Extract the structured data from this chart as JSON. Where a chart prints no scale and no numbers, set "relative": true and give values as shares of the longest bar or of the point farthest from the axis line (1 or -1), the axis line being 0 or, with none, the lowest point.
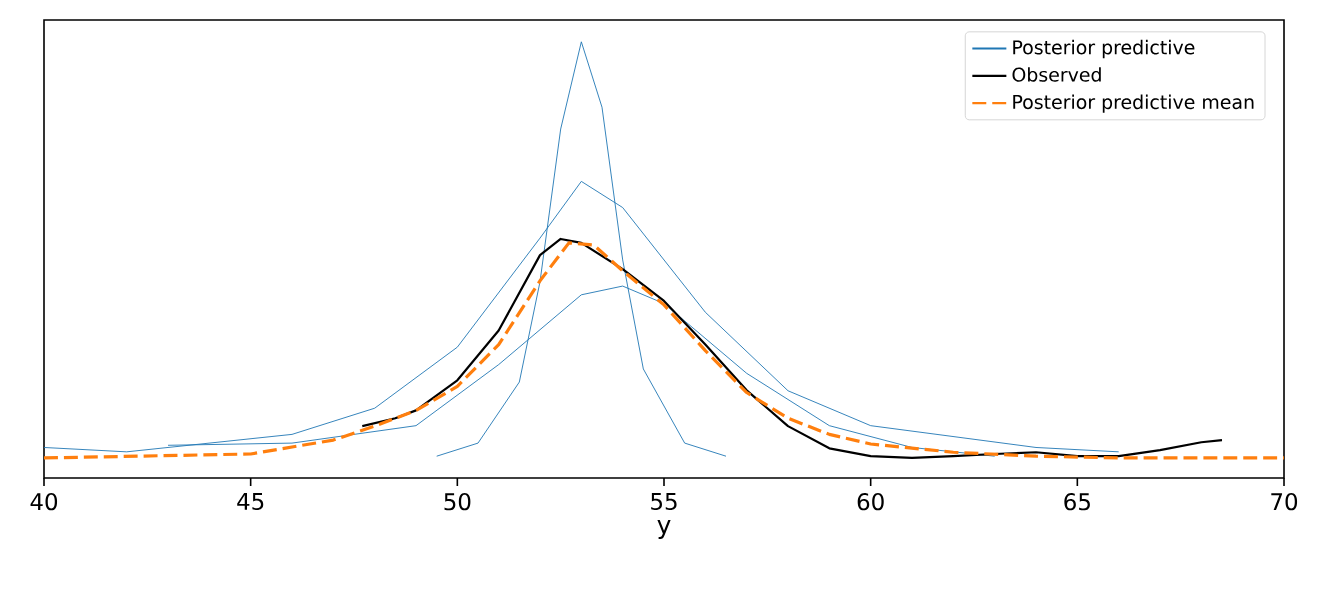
{
  "chart_data": {
    "type": "line",
    "relative": true,
    "xlabel": "y",
    "xlim": [
      40,
      70
    ],
    "xticks": [
      40,
      45,
      50,
      55,
      60,
      65,
      70
    ],
    "tick_labels": "x",
    "grid": false,
    "legend": "top right",
    "series": [
      {
        "name": "Posterior predictive",
        "color": "#1f77b4",
        "line_style": "solid",
        "x": [
          49.5,
          50.5,
          51.5,
          52,
          52.5,
          53,
          53.5,
          54,
          54.5,
          55.5,
          56.5
        ],
        "values": [
          0.05,
          0.08,
          0.22,
          0.45,
          0.8,
          1.0,
          0.85,
          0.5,
          0.25,
          0.08,
          0.05
        ]
      },
      {
        "color": "#1f77b4",
        "line_style": "solid",
        "x": [
          40,
          42,
          46,
          48,
          50,
          52,
          53,
          54,
          56,
          58,
          60,
          64,
          66
        ],
        "values": [
          0.07,
          0.06,
          0.1,
          0.16,
          0.3,
          0.55,
          0.68,
          0.62,
          0.38,
          0.2,
          0.12,
          0.07,
          0.06
        ]
      },
      {
        "color": "#1f77b4",
        "line_style": "solid",
        "x": [
          43,
          46,
          49,
          51,
          53,
          54,
          55,
          57,
          59,
          61,
          63
        ],
        "values": [
          0.075,
          0.08,
          0.12,
          0.26,
          0.42,
          0.44,
          0.4,
          0.24,
          0.12,
          0.07,
          0.05
        ]
      },
      {
        "name": "Observed",
        "color": "#000000",
        "line_style": "solid",
        "x": [
          47.7,
          48.5,
          49,
          50,
          51,
          52,
          52.5,
          53,
          54,
          55,
          56,
          57,
          58,
          59,
          60,
          61,
          62,
          63,
          64,
          65,
          66,
          67,
          68,
          68.5
        ],
        "values": [
          0.119,
          0.137,
          0.155,
          0.224,
          0.338,
          0.511,
          0.548,
          0.539,
          0.479,
          0.406,
          0.306,
          0.201,
          0.119,
          0.068,
          0.05,
          0.046,
          0.05,
          0.055,
          0.059,
          0.05,
          0.05,
          0.064,
          0.082,
          0.087
        ]
      },
      {
        "name": "Posterior predictive mean",
        "color": "#ff7f0e",
        "line_style": "dashed",
        "x": [
          40,
          45,
          47,
          48,
          49,
          50,
          51,
          52,
          52.7,
          53.3,
          54,
          55,
          56,
          57,
          58,
          59,
          60,
          62,
          64,
          66,
          70
        ],
        "values": [
          0.046,
          0.055,
          0.087,
          0.119,
          0.155,
          0.21,
          0.306,
          0.452,
          0.539,
          0.534,
          0.475,
          0.397,
          0.292,
          0.196,
          0.137,
          0.1,
          0.078,
          0.059,
          0.05,
          0.046,
          0.046
        ]
      }
    ]
  }
}
